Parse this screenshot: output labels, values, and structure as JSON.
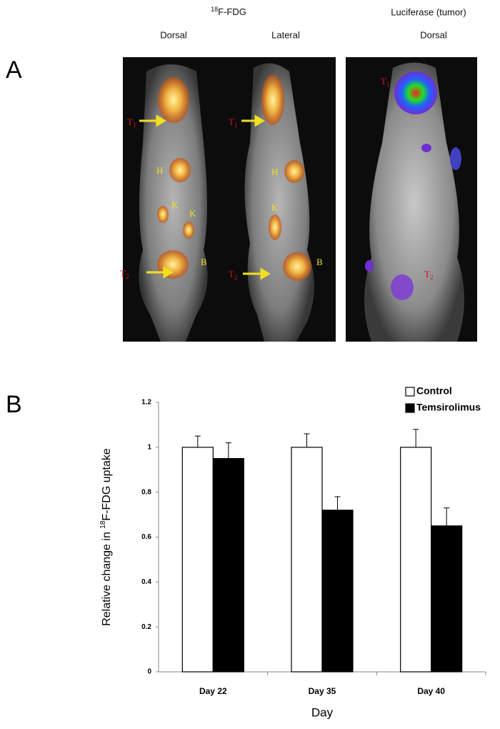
{
  "panel_a": {
    "label": "A",
    "group_title": {
      "sup": "18",
      "text": "F-FDG"
    },
    "views": [
      "Dorsal",
      "Lateral"
    ],
    "luciferase_title": "Luciferase (tumor)",
    "luciferase_view": "Dorsal",
    "markers": [
      {
        "text": "T",
        "sub": "1",
        "color": "#d8101a"
      },
      {
        "text": "H",
        "color": "#f0e020"
      },
      {
        "text": "K",
        "color": "#f0e020"
      },
      {
        "text": "K",
        "color": "#f0e020"
      },
      {
        "text": "B",
        "color": "#f0e020"
      },
      {
        "text": "T",
        "sub": "2",
        "color": "#d8101a"
      },
      {
        "text": "T",
        "sub": "1",
        "color": "#d8101a"
      },
      {
        "text": "H",
        "color": "#f0e020"
      },
      {
        "text": "K",
        "color": "#f0e020"
      },
      {
        "text": "B",
        "color": "#f0e020"
      },
      {
        "text": "T",
        "sub": "2",
        "color": "#d8101a"
      },
      {
        "text": "T",
        "sub": "1",
        "color": "#d8101a"
      },
      {
        "text": "T",
        "sub": "2",
        "color": "#d8101a"
      }
    ]
  },
  "panel_b_label": "B",
  "chart_data": {
    "type": "bar",
    "x_label": "Day",
    "y_label": {
      "before": "Relative change in ",
      "sup": "18",
      "after": "F-FDG uptake"
    },
    "categories": [
      "Day 22",
      "Day 35",
      "Day 40"
    ],
    "series": [
      {
        "name": "Control",
        "color": "#ffffff",
        "values": [
          1,
          1,
          1
        ],
        "errors": [
          0.05,
          0.06,
          0.08
        ]
      },
      {
        "name": "Temsirolimus",
        "color": "#000000",
        "values": [
          0.95,
          0.72,
          0.65
        ],
        "errors": [
          0.07,
          0.06,
          0.08
        ]
      }
    ],
    "ylim": [
      0,
      1.2
    ],
    "yticks": [
      0,
      0.2,
      0.4,
      0.6,
      0.8,
      1,
      1.2
    ],
    "legend": "upper right"
  }
}
